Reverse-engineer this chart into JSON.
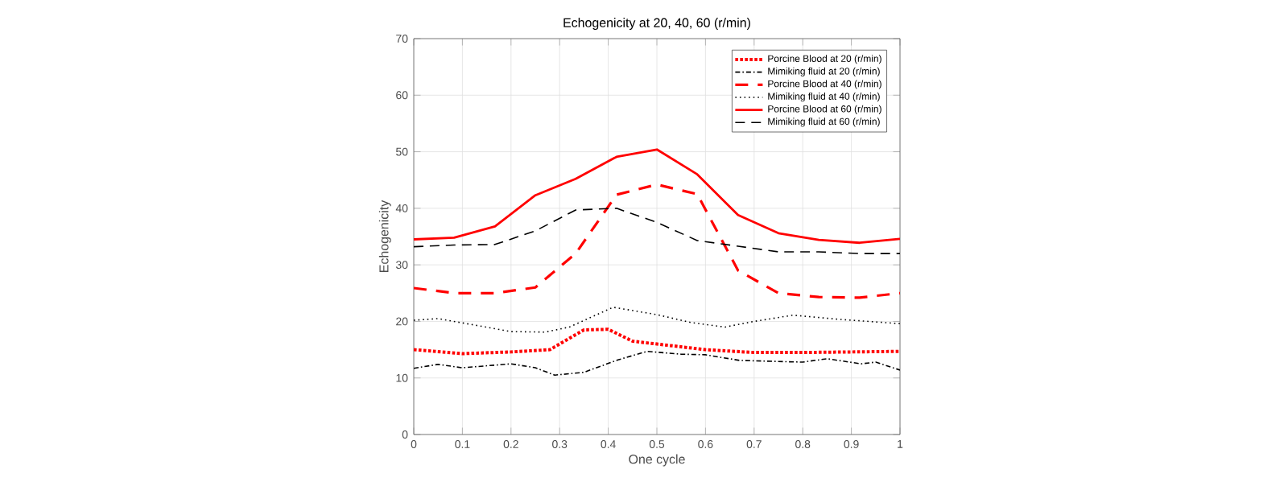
{
  "chart_data": {
    "type": "line",
    "title": "Echogenicity at 20, 40, 60 (r/min)",
    "xlabel": "One cycle",
    "ylabel": "Echogenicity",
    "xlim": [
      0,
      1
    ],
    "ylim": [
      0,
      70
    ],
    "xticks": [
      0,
      0.1,
      0.2,
      0.3,
      0.4,
      0.5,
      0.6,
      0.7,
      0.8,
      0.9,
      1
    ],
    "yticks": [
      0,
      10,
      20,
      30,
      40,
      50,
      60,
      70
    ],
    "grid": true,
    "legend": "top right",
    "marker": "none",
    "series": [
      {
        "name": "Porcine Blood at 20 (r/min)",
        "color": "#ff0000",
        "line_style": "dotted",
        "x": [
          0,
          0.1,
          0.2,
          0.28,
          0.35,
          0.4,
          0.45,
          0.55,
          0.6,
          0.7,
          0.8,
          1
        ],
        "values": [
          15,
          14.3,
          14.6,
          15,
          18.5,
          18.6,
          16.5,
          15.5,
          15,
          14.5,
          14.5,
          14.7
        ]
      },
      {
        "name": "Mimiking fluid at 20 (r/min)",
        "color": "#000000",
        "line_style": "dashdot",
        "x": [
          0,
          0.05,
          0.1,
          0.2,
          0.25,
          0.29,
          0.35,
          0.42,
          0.48,
          0.55,
          0.6,
          0.67,
          0.8,
          0.85,
          0.92,
          0.95,
          1
        ],
        "values": [
          11.7,
          12.4,
          11.8,
          12.5,
          11.8,
          10.5,
          11,
          13.2,
          14.7,
          14.2,
          14.1,
          13.1,
          12.8,
          13.4,
          12.5,
          12.8,
          11.4
        ]
      },
      {
        "name": "Porcine Blood at 40 (r/min)",
        "color": "#ff0000",
        "line_style": "dashed",
        "x": [
          0,
          0.083,
          0.167,
          0.25,
          0.333,
          0.417,
          0.5,
          0.583,
          0.667,
          0.75,
          0.833,
          0.917,
          1
        ],
        "values": [
          25.9,
          25,
          25,
          26,
          32,
          42.4,
          44.2,
          42.5,
          29,
          25,
          24.3,
          24.2,
          25
        ]
      },
      {
        "name": "Mimiking fluid at 40 (r/min)",
        "color": "#000000",
        "line_style": "dotted",
        "x": [
          0,
          0.05,
          0.2,
          0.27,
          0.32,
          0.41,
          0.5,
          0.57,
          0.64,
          0.7,
          0.78,
          0.87,
          1
        ],
        "values": [
          20.2,
          20.5,
          18.2,
          18.1,
          19,
          22.5,
          21.2,
          19.8,
          19,
          20,
          21.1,
          20.4,
          19.6
        ]
      },
      {
        "name": "Porcine Blood at 60 (r/min)",
        "color": "#ff0000",
        "line_style": "solid",
        "x": [
          0,
          0.083,
          0.167,
          0.25,
          0.333,
          0.417,
          0.5,
          0.583,
          0.667,
          0.75,
          0.833,
          0.917,
          1
        ],
        "values": [
          34.5,
          34.8,
          36.8,
          42.3,
          45.2,
          49.1,
          50.4,
          46,
          38.8,
          35.6,
          34.4,
          33.9,
          34.6
        ]
      },
      {
        "name": "Mimiking fluid at 60 (r/min)",
        "color": "#000000",
        "line_style": "dashed",
        "x": [
          0,
          0.083,
          0.167,
          0.25,
          0.333,
          0.417,
          0.5,
          0.583,
          0.667,
          0.75,
          0.833,
          0.917,
          1
        ],
        "values": [
          33.2,
          33.5,
          33.6,
          36,
          39.7,
          40,
          37.5,
          34.3,
          33.3,
          32.3,
          32.3,
          32,
          32
        ]
      }
    ]
  }
}
